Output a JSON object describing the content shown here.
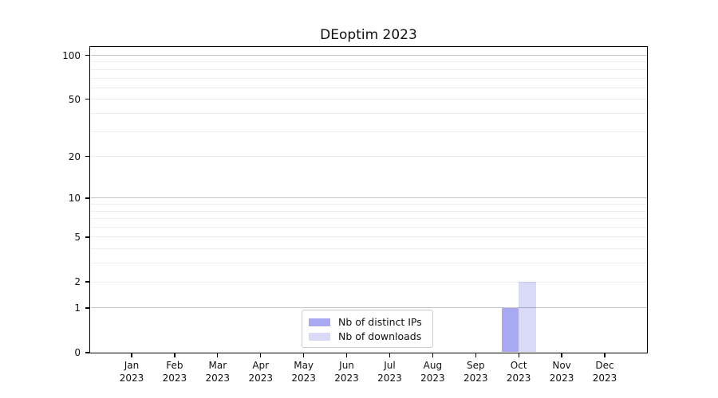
{
  "figure": {
    "background_color": "#ffffff"
  },
  "chart_data": {
    "type": "bar",
    "title": "DEoptim 2023",
    "categories": [
      "Jan",
      "Feb",
      "Mar",
      "Apr",
      "May",
      "Jun",
      "Jul",
      "Aug",
      "Sep",
      "Oct",
      "Nov",
      "Dec"
    ],
    "category_year": "2023",
    "series": [
      {
        "name": "Nb of distinct IPs",
        "color": "#a9a9f3",
        "values": [
          0,
          0,
          0,
          0,
          0,
          0,
          0,
          0,
          0,
          1,
          0,
          0
        ]
      },
      {
        "name": "Nb of downloads",
        "color": "#d9d9f8",
        "values": [
          0,
          0,
          0,
          0,
          0,
          0,
          0,
          0,
          0,
          2,
          0,
          0
        ]
      }
    ],
    "y_axis": {
      "scale": "log1p",
      "ticks": [
        0,
        1,
        2,
        5,
        10,
        20,
        50,
        100
      ],
      "major_gridlines": [
        1,
        10,
        100
      ],
      "minor_gridlines": [
        2,
        3,
        4,
        5,
        6,
        7,
        8,
        9,
        20,
        30,
        40,
        50,
        60,
        70,
        80,
        90
      ],
      "range": [
        0,
        100
      ]
    },
    "x_axis": {
      "tick_per_category": true
    },
    "grid": true,
    "legend": {
      "position": "inside-bottom-center"
    },
    "colors": {
      "major_grid": "#c3c3c3",
      "minor_grid": "#ececec",
      "axis": "#000000",
      "text": "#111111"
    }
  }
}
